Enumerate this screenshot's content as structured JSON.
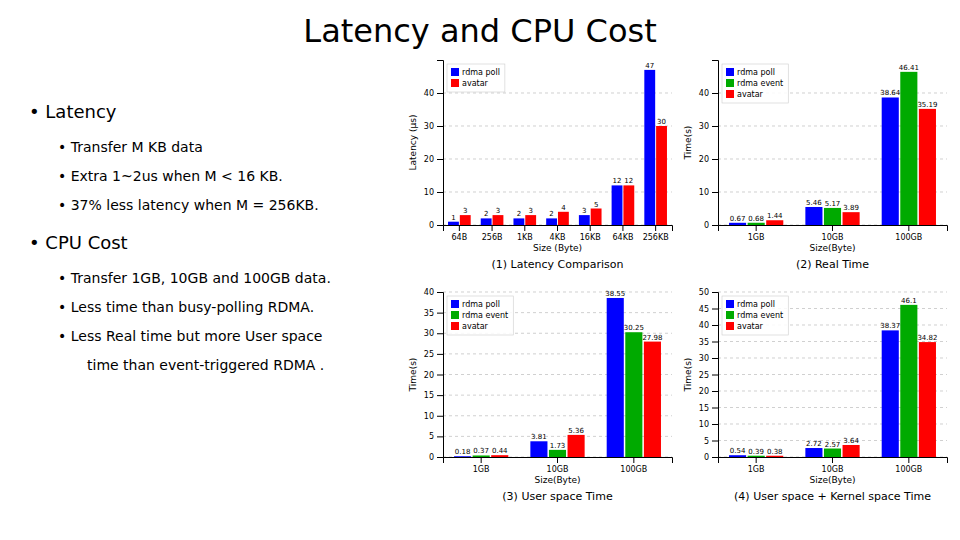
{
  "title": "Latency and CPU Cost",
  "annotations": [
    [
      "• Latency",
      "• Transfer M KB data",
      "• Extra 1~2us when M < 16 KB.",
      "• 37% less latency when M = 256KB."
    ],
    [
      "• CPU Cost",
      "• Transfer 1GB, 10GB and 100GB data.",
      "• Less time than busy-polling RDMA.",
      "• Less Real time but more User space",
      "time than event-triggered RDMA ."
    ]
  ],
  "chart_data": [
    {
      "type": "bar",
      "title": "(1) Latency Comparison",
      "xlabel": "Size (Byte)",
      "ylabel": "Latency (μs)",
      "categories": [
        "64B",
        "256B",
        "1KB",
        "4KB",
        "16KB",
        "64KB",
        "256KB"
      ],
      "series": [
        {
          "name": "rdma poll",
          "color": "#0000ff",
          "values": [
            1,
            2,
            2,
            2,
            3,
            12,
            47
          ]
        },
        {
          "name": "avatar",
          "color": "#ff0000",
          "values": [
            3,
            3,
            3,
            4,
            5,
            12,
            30
          ]
        }
      ],
      "ylim": [
        0,
        50
      ],
      "yticks": [
        0,
        10,
        20,
        30,
        40
      ],
      "grid": true,
      "legend": "upper left",
      "data_labels": true
    },
    {
      "type": "bar",
      "title": "(2) Real Time",
      "xlabel": "Size(Byte)",
      "ylabel": "Time(s)",
      "categories": [
        "1GB",
        "10GB",
        "100GB"
      ],
      "series": [
        {
          "name": "rdma poll",
          "color": "#0000ff",
          "values": [
            0.67,
            5.46,
            38.64
          ]
        },
        {
          "name": "rdma event",
          "color": "#00aa00",
          "values": [
            0.68,
            5.17,
            46.41
          ]
        },
        {
          "name": "avatar",
          "color": "#ff0000",
          "values": [
            1.44,
            3.89,
            35.19
          ]
        }
      ],
      "ylim": [
        0,
        50
      ],
      "yticks": [
        0,
        10,
        20,
        30,
        40
      ],
      "grid": true,
      "legend": "upper left",
      "data_labels": true
    },
    {
      "type": "bar",
      "title": "(3) User space Time",
      "xlabel": "Size(Byte)",
      "ylabel": "Time(s)",
      "categories": [
        "1GB",
        "10GB",
        "100GB"
      ],
      "series": [
        {
          "name": "rdma poll",
          "color": "#0000ff",
          "values": [
            0.18,
            3.81,
            38.55
          ]
        },
        {
          "name": "rdma event",
          "color": "#00aa00",
          "values": [
            0.37,
            1.73,
            30.25
          ]
        },
        {
          "name": "avatar",
          "color": "#ff0000",
          "values": [
            0.44,
            5.36,
            27.98
          ]
        }
      ],
      "ylim": [
        0,
        40
      ],
      "yticks": [
        0,
        5,
        10,
        15,
        20,
        25,
        30,
        35,
        40
      ],
      "grid": true,
      "legend": "upper left",
      "data_labels": true
    },
    {
      "type": "bar",
      "title": "(4) User space + Kernel space Time",
      "xlabel": "Size(Byte)",
      "ylabel": "Time(s)",
      "categories": [
        "1GB",
        "10GB",
        "100GB"
      ],
      "series": [
        {
          "name": "rdma poll",
          "color": "#0000ff",
          "values": [
            0.54,
            2.72,
            38.37
          ]
        },
        {
          "name": "rdma event",
          "color": "#00aa00",
          "values": [
            0.39,
            2.57,
            46.1
          ]
        },
        {
          "name": "avatar",
          "color": "#ff0000",
          "values": [
            0.38,
            3.64,
            34.82
          ]
        }
      ],
      "ylim": [
        0,
        50
      ],
      "yticks": [
        0,
        5,
        10,
        15,
        20,
        25,
        30,
        35,
        40,
        45,
        50
      ],
      "grid": true,
      "legend": "upper left",
      "data_labels": true
    }
  ]
}
